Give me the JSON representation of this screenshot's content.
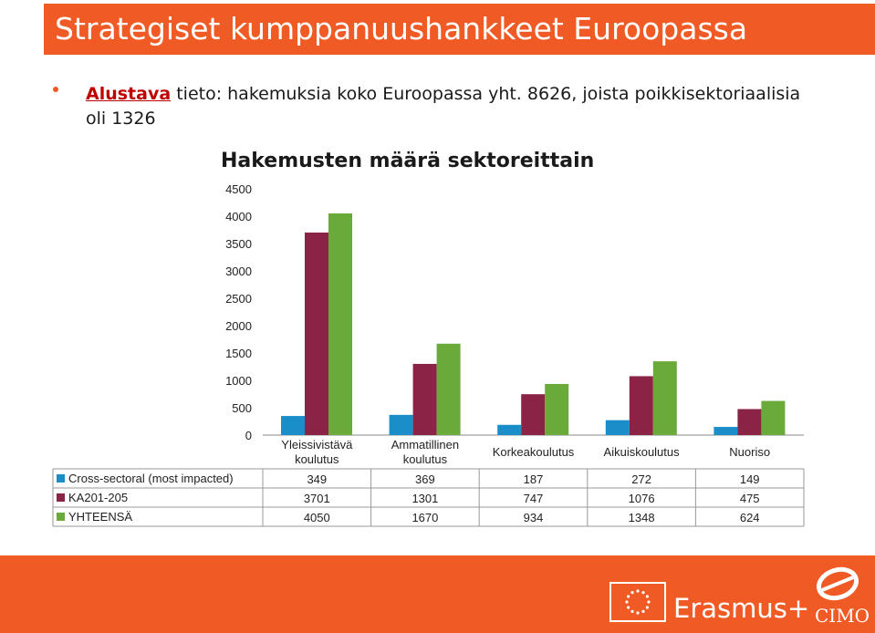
{
  "slide": {
    "title": "Strategiset kumppanuushankkeet Euroopassa",
    "bullet": {
      "link_text": "Alustava",
      "text": " tieto: hakemuksia koko Euroopassa yht. 8626, joista poikkisektoriaalisia oli 1326"
    }
  },
  "chart_data": {
    "type": "bar",
    "title": "Hakemusten määrä sektoreittain",
    "categories": [
      "Yleissivistävä koulutus",
      "Ammatillinen koulutus",
      "Korkeakoulutus",
      "Aikuiskoulutus",
      "Nuoriso"
    ],
    "category_lines": [
      [
        "Yleissivistävä",
        "koulutus"
      ],
      [
        "Ammatillinen",
        "koulutus"
      ],
      [
        "Korkeakoulutus"
      ],
      [
        "Aikuiskoulutus"
      ],
      [
        "Nuoriso"
      ]
    ],
    "series": [
      {
        "name": "Cross-sectoral (most impacted)",
        "values": [
          349,
          369,
          187,
          272,
          149
        ],
        "color": "#1a8ec9"
      },
      {
        "name": "KA201-205",
        "values": [
          3701,
          1301,
          747,
          1076,
          475
        ],
        "color": "#8b2346"
      },
      {
        "name": "YHTEENSÄ",
        "values": [
          4050,
          1670,
          934,
          1348,
          624
        ],
        "color": "#6aaa3a"
      }
    ],
    "yticks": [
      "0",
      "500",
      "1000",
      "1500",
      "2000",
      "2500",
      "3000",
      "3500",
      "4000",
      "4500"
    ],
    "ylim": [
      0,
      4500
    ],
    "grid": false,
    "legend": "data table below chart"
  },
  "footer": {
    "erasmus_label": "Erasmus+",
    "cimo_label": "CIMO",
    "brand_color": "#f05a24"
  }
}
